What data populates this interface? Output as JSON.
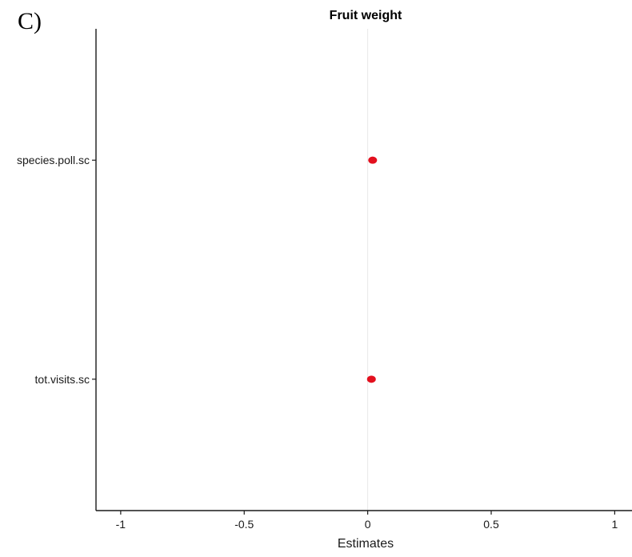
{
  "panel_label": "C)",
  "colors": {
    "point": "#e3101e",
    "axis": "#1a1a1a",
    "zero_line": "#e8e8e8",
    "text": "#1a1a1a"
  },
  "chart_data": {
    "type": "scatter",
    "subtype": "coefficient-dot-plot",
    "title": "Fruit weight",
    "xlabel": "Estimates",
    "ylabel": "",
    "xlim": [
      -1.1,
      1.07
    ],
    "x_ticks": [
      -1,
      -0.5,
      0,
      0.5,
      1
    ],
    "x_tick_labels": [
      "-1",
      "-0.5",
      "0",
      "0.5",
      "1"
    ],
    "categories": [
      "species.poll.sc",
      "tot.visits.sc"
    ],
    "series": [
      {
        "values": [
          0.02,
          0.015
        ]
      }
    ],
    "reference_line_x": 0,
    "grid": false,
    "legend": "none"
  }
}
